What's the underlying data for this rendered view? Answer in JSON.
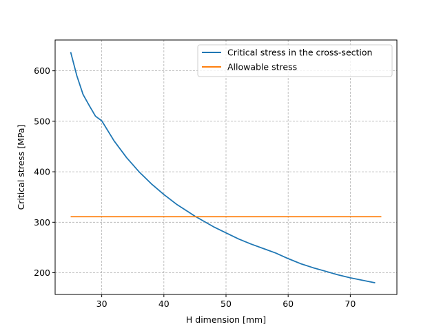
{
  "chart_data": {
    "type": "line",
    "title": "",
    "xlabel": "H dimension [mm]",
    "ylabel": "Critical stress [MPa]",
    "xlim": [
      22.5,
      77.5
    ],
    "ylim": [
      157,
      661
    ],
    "xticks": [
      30,
      40,
      50,
      60,
      70
    ],
    "yticks": [
      200,
      300,
      400,
      500,
      600
    ],
    "grid": true,
    "legend_position": "top-right",
    "series": [
      {
        "name": "Critical stress in the cross-section",
        "color": "#1f77b4",
        "x": [
          25,
          26,
          27,
          28,
          29,
          30,
          32,
          34,
          36,
          38,
          40,
          42,
          44,
          45,
          46,
          48,
          50,
          52,
          54,
          56,
          58,
          60,
          62,
          64,
          66,
          68,
          70,
          72,
          74
        ],
        "y": [
          637,
          590,
          553,
          531,
          510,
          501,
          461,
          428,
          400,
          376,
          355,
          336,
          320,
          312,
          305,
          291,
          279,
          267,
          257,
          248,
          239,
          228,
          218,
          210,
          203,
          196,
          190,
          185,
          180
        ]
      },
      {
        "name": "Allowable stress",
        "color": "#ff7f0e",
        "x": [
          25,
          75
        ],
        "y": [
          311,
          311
        ]
      }
    ]
  }
}
